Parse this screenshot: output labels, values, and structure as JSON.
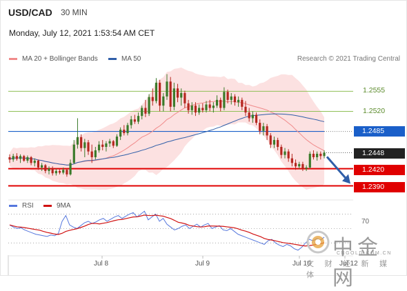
{
  "header": {
    "symbol": "USD/CAD",
    "timeframe": "30 MIN",
    "datetime": "Monday, July 12, 2021 1:53:54 AM CET"
  },
  "legend": {
    "ma20_label": "MA 20 + Bollinger Bands",
    "ma50_label": "MA 50",
    "credit": "Research © 2021 Trading Central"
  },
  "colors": {
    "up": "#3a7a2a",
    "down": "#b5261f",
    "ma20": "#f08a8a",
    "ma50": "#2f5ea8",
    "band_fill": "#fbdada",
    "resistance": "#8fbf55",
    "pivot": "#1a5fc9",
    "support": "#e00000",
    "price_tag": "#222222",
    "rsi": "#5577dd",
    "rsi_ma": "#d01010"
  },
  "levels": {
    "r2": "1.2555",
    "r1": "1.2520",
    "pivot": "1.2485",
    "last": "1.2448",
    "s1": "1.2420",
    "s2": "1.2390"
  },
  "rsi": {
    "rsi_label": "RSI",
    "ma_label": "9MA",
    "level_70": "70"
  },
  "x_axis": {
    "labels": [
      "Jul 8",
      "Jul 9",
      "Jul 10",
      "Jul 12"
    ]
  },
  "watermark": {
    "cn": "中金网",
    "url": "CNGOLD.COM.CN",
    "tagline": "文 财 经 新 媒 体"
  },
  "chart_data": {
    "type": "candlestick",
    "ylim": [
      1.2375,
      1.26
    ],
    "candles": [
      [
        1.244,
        1.2445,
        1.243,
        1.2436
      ],
      [
        1.2436,
        1.2446,
        1.2432,
        1.2442
      ],
      [
        1.2442,
        1.2447,
        1.2434,
        1.2437
      ],
      [
        1.2437,
        1.2445,
        1.243,
        1.2442
      ],
      [
        1.2442,
        1.2444,
        1.2432,
        1.2434
      ],
      [
        1.2434,
        1.2443,
        1.243,
        1.244
      ],
      [
        1.244,
        1.2442,
        1.2426,
        1.243
      ],
      [
        1.243,
        1.2438,
        1.2424,
        1.2434
      ],
      [
        1.2434,
        1.2436,
        1.2418,
        1.2422
      ],
      [
        1.2422,
        1.243,
        1.2416,
        1.2426
      ],
      [
        1.2426,
        1.2428,
        1.2412,
        1.2416
      ],
      [
        1.2416,
        1.2424,
        1.241,
        1.242
      ],
      [
        1.242,
        1.2424,
        1.2408,
        1.2412
      ],
      [
        1.2412,
        1.242,
        1.2408,
        1.2416
      ],
      [
        1.2416,
        1.242,
        1.241,
        1.2413
      ],
      [
        1.2413,
        1.2422,
        1.241,
        1.2418
      ],
      [
        1.2418,
        1.242,
        1.2406,
        1.241
      ],
      [
        1.241,
        1.2436,
        1.2408,
        1.243
      ],
      [
        1.243,
        1.247,
        1.2428,
        1.2462
      ],
      [
        1.2462,
        1.2508,
        1.2455,
        1.2475
      ],
      [
        1.2475,
        1.248,
        1.245,
        1.2456
      ],
      [
        1.2456,
        1.2472,
        1.244,
        1.2466
      ],
      [
        1.2466,
        1.247,
        1.2444,
        1.245
      ],
      [
        1.245,
        1.2462,
        1.243,
        1.244
      ],
      [
        1.244,
        1.2458,
        1.2436,
        1.2452
      ],
      [
        1.2452,
        1.2468,
        1.2448,
        1.2462
      ],
      [
        1.2462,
        1.247,
        1.2452,
        1.2458
      ],
      [
        1.2458,
        1.2468,
        1.245,
        1.2464
      ],
      [
        1.2464,
        1.2472,
        1.2458,
        1.2468
      ],
      [
        1.2468,
        1.247,
        1.2456,
        1.246
      ],
      [
        1.246,
        1.248,
        1.2458,
        1.2476
      ],
      [
        1.2476,
        1.2492,
        1.247,
        1.2488
      ],
      [
        1.2488,
        1.2496,
        1.2478,
        1.2482
      ],
      [
        1.2482,
        1.25,
        1.2478,
        1.2496
      ],
      [
        1.2496,
        1.2512,
        1.249,
        1.2506
      ],
      [
        1.2506,
        1.2514,
        1.2498,
        1.2502
      ],
      [
        1.2502,
        1.2518,
        1.2498,
        1.2512
      ],
      [
        1.2512,
        1.253,
        1.2506,
        1.2526
      ],
      [
        1.2526,
        1.254,
        1.251,
        1.2516
      ],
      [
        1.2516,
        1.255,
        1.2512,
        1.2545
      ],
      [
        1.2545,
        1.256,
        1.253,
        1.2538
      ],
      [
        1.2538,
        1.2578,
        1.2534,
        1.257
      ],
      [
        1.257,
        1.2575,
        1.252,
        1.253
      ],
      [
        1.253,
        1.2552,
        1.252,
        1.2546
      ],
      [
        1.2546,
        1.2585,
        1.254,
        1.2572
      ],
      [
        1.2572,
        1.258,
        1.252,
        1.2528
      ],
      [
        1.2528,
        1.257,
        1.2522,
        1.256
      ],
      [
        1.256,
        1.2568,
        1.2536,
        1.2544
      ],
      [
        1.2544,
        1.256,
        1.253,
        1.2552
      ],
      [
        1.2552,
        1.2556,
        1.2526,
        1.2534
      ],
      [
        1.2534,
        1.254,
        1.2516,
        1.2522
      ],
      [
        1.2522,
        1.2536,
        1.2514,
        1.253
      ],
      [
        1.253,
        1.2536,
        1.2512,
        1.2518
      ],
      [
        1.2518,
        1.2532,
        1.2514,
        1.2526
      ],
      [
        1.2526,
        1.2534,
        1.2518,
        1.2522
      ],
      [
        1.2522,
        1.2538,
        1.2518,
        1.2532
      ],
      [
        1.2532,
        1.254,
        1.252,
        1.2526
      ],
      [
        1.2526,
        1.2536,
        1.2518,
        1.253
      ],
      [
        1.253,
        1.2548,
        1.2526,
        1.254
      ],
      [
        1.254,
        1.2544,
        1.252,
        1.2526
      ],
      [
        1.2526,
        1.2562,
        1.2522,
        1.2554
      ],
      [
        1.2554,
        1.2558,
        1.2534,
        1.254
      ],
      [
        1.254,
        1.2552,
        1.2532,
        1.2546
      ],
      [
        1.2546,
        1.255,
        1.253,
        1.2536
      ],
      [
        1.2536,
        1.2546,
        1.2528,
        1.254
      ],
      [
        1.254,
        1.2544,
        1.2522,
        1.2528
      ],
      [
        1.2528,
        1.2538,
        1.2512,
        1.2518
      ],
      [
        1.2518,
        1.2526,
        1.2502,
        1.2508
      ],
      [
        1.2508,
        1.252,
        1.25,
        1.2514
      ],
      [
        1.2514,
        1.2518,
        1.2496,
        1.25
      ],
      [
        1.25,
        1.2506,
        1.248,
        1.2486
      ],
      [
        1.2486,
        1.25,
        1.2478,
        1.2494
      ],
      [
        1.2494,
        1.2498,
        1.247,
        1.2478
      ],
      [
        1.2478,
        1.2482,
        1.2456,
        1.2462
      ],
      [
        1.2462,
        1.2476,
        1.2456,
        1.247
      ],
      [
        1.247,
        1.2474,
        1.2452,
        1.2458
      ],
      [
        1.2458,
        1.2462,
        1.2438,
        1.2444
      ],
      [
        1.2444,
        1.2456,
        1.2438,
        1.245
      ],
      [
        1.245,
        1.2454,
        1.2432,
        1.2438
      ],
      [
        1.2438,
        1.2446,
        1.2424,
        1.243
      ],
      [
        1.243,
        1.2436,
        1.2418,
        1.2424
      ],
      [
        1.2424,
        1.2432,
        1.242,
        1.2428
      ],
      [
        1.2428,
        1.2432,
        1.2416,
        1.242
      ],
      [
        1.242,
        1.2426,
        1.2416,
        1.2422
      ],
      [
        1.2422,
        1.245,
        1.242,
        1.2446
      ],
      [
        1.2446,
        1.2452,
        1.2436,
        1.244
      ],
      [
        1.244,
        1.245,
        1.2434,
        1.2446
      ],
      [
        1.2446,
        1.245,
        1.2436,
        1.2442
      ],
      [
        1.2442,
        1.2452,
        1.2438,
        1.2448
      ]
    ],
    "rsi": [
      55,
      52,
      50,
      51,
      48,
      46,
      44,
      42,
      41,
      40,
      39,
      41,
      40,
      43,
      60,
      68,
      55,
      52,
      50,
      54,
      58,
      60,
      57,
      59,
      62,
      64,
      60,
      63,
      66,
      68,
      64,
      67,
      70,
      72,
      66,
      70,
      74,
      62,
      66,
      70,
      60,
      64,
      56,
      52,
      48,
      50,
      53,
      55,
      50,
      53,
      56,
      52,
      55,
      57,
      50,
      52,
      54,
      48,
      47,
      50,
      46,
      42,
      40,
      38,
      36,
      34,
      32,
      30,
      28,
      33,
      35,
      30,
      27,
      25,
      28,
      26,
      22,
      20,
      24,
      30,
      35,
      33,
      36,
      34,
      38
    ],
    "rsi_ylim": [
      15,
      80
    ]
  }
}
